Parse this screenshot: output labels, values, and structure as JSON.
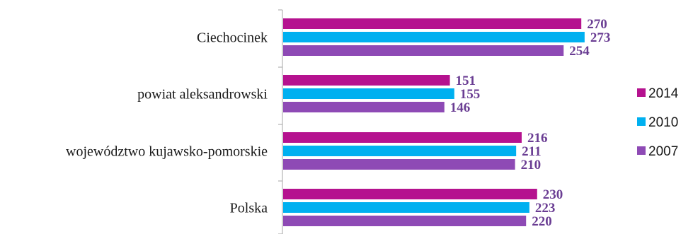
{
  "chart_data": {
    "type": "bar",
    "orientation": "horizontal",
    "categories": [
      "Ciechocinek",
      "powiat aleksandrowski",
      "województwo kujawsko-pomorskie",
      "Polska"
    ],
    "series": [
      {
        "name": "2014",
        "color": "#b5128f",
        "values": [
          270,
          151,
          216,
          230
        ]
      },
      {
        "name": "2010",
        "color": "#00b0f0",
        "values": [
          273,
          155,
          211,
          223
        ]
      },
      {
        "name": "2007",
        "color": "#8e4ab5",
        "values": [
          254,
          146,
          210,
          220
        ]
      }
    ],
    "value_axis_min": 0,
    "data_labels": true,
    "grid": false,
    "legend_position": "right"
  }
}
